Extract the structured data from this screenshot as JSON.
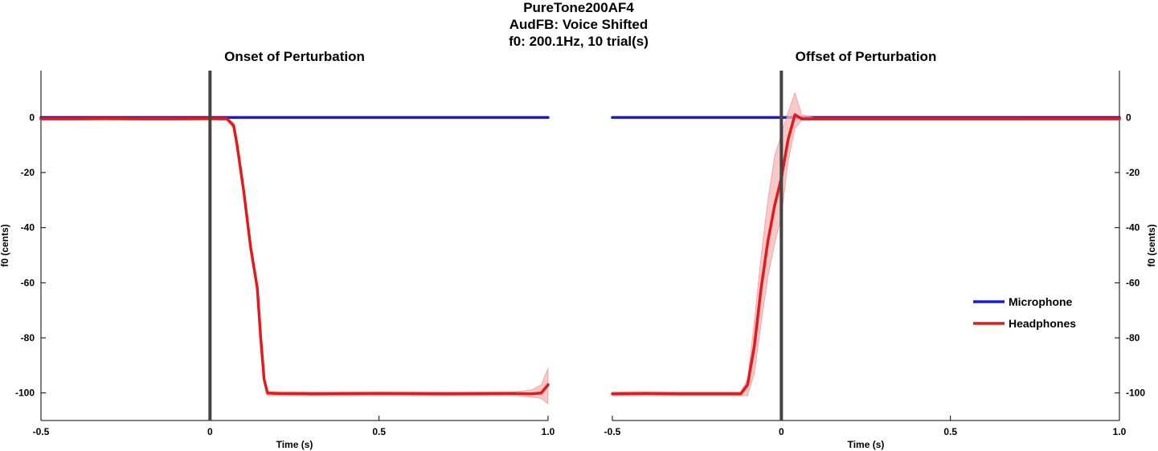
{
  "figure": {
    "title_lines": [
      "PureTone200AF4",
      "AudFB: Voice Shifted",
      "f0: 200.1Hz, 10 trial(s)"
    ]
  },
  "colors": {
    "microphone": "#1a1ad6",
    "headphones": "#e31a1c",
    "band": "#f4b6b6",
    "marker": "#444444"
  },
  "chart_data": [
    {
      "type": "line",
      "title": "Onset of Perturbation",
      "xlabel": "Time (s)",
      "ylabel": "f0 (cents)",
      "xlim": [
        -0.5,
        1.0
      ],
      "ylim": [
        -110,
        17
      ],
      "xticks": [
        -0.5,
        0,
        0.5,
        1.0
      ],
      "xtick_labels": [
        "-0.5",
        "0",
        "0.5",
        "1.0"
      ],
      "yticks": [
        0,
        -20,
        -40,
        -60,
        -80,
        -100
      ],
      "ytick_labels": [
        "0",
        "-20",
        "-40",
        "-60",
        "-80",
        "-100"
      ],
      "y_axis_side": "left",
      "grid": false,
      "event_line_x": 0,
      "series": [
        {
          "name": "Microphone",
          "x": [
            -0.5,
            1.0
          ],
          "y": [
            0,
            0
          ]
        },
        {
          "name": "Headphones",
          "x": [
            -0.5,
            -0.4,
            -0.3,
            -0.2,
            -0.1,
            0.0,
            0.05,
            0.07,
            0.08,
            0.1,
            0.12,
            0.14,
            0.15,
            0.16,
            0.17,
            0.2,
            0.3,
            0.5,
            0.7,
            0.9,
            0.95,
            0.98,
            1.0
          ],
          "y": [
            -0.5,
            -0.5,
            -0.4,
            -0.5,
            -0.5,
            -0.4,
            -0.5,
            -3,
            -10,
            -27,
            -47,
            -62,
            -80,
            -95,
            -100,
            -100.2,
            -100.3,
            -100.2,
            -100.3,
            -100.2,
            -100.3,
            -100,
            -97
          ],
          "band_low": [
            -1,
            -1,
            -1,
            -1,
            -1,
            -1,
            -1,
            -4,
            -11,
            -28,
            -48,
            -63,
            -81,
            -96,
            -101,
            -101,
            -101,
            -101,
            -101,
            -101,
            -101.5,
            -102,
            -104
          ],
          "band_high": [
            0,
            0,
            0,
            0,
            0,
            0,
            0,
            -2,
            -9,
            -26,
            -46,
            -61,
            -79,
            -94,
            -99.5,
            -99.5,
            -99.5,
            -99.5,
            -99.5,
            -99.5,
            -99,
            -97,
            -91
          ]
        }
      ]
    },
    {
      "type": "line",
      "title": "Offset of Perturbation",
      "xlabel": "Time (s)",
      "ylabel": "f0 (cents)",
      "xlim": [
        -0.5,
        1.0
      ],
      "ylim": [
        -110,
        17
      ],
      "xticks": [
        -0.5,
        0,
        0.5,
        1.0
      ],
      "xtick_labels": [
        "-0.5",
        "0",
        "0.5",
        "1.0"
      ],
      "yticks": [
        0,
        -20,
        -40,
        -60,
        -80,
        -100
      ],
      "ytick_labels": [
        "0",
        "-20",
        "-40",
        "-60",
        "-80",
        "-100"
      ],
      "y_axis_side": "right",
      "grid": false,
      "event_line_x": 0,
      "legend": {
        "placement": "lower-right",
        "entries": [
          "Microphone",
          "Headphones"
        ]
      },
      "series": [
        {
          "name": "Microphone",
          "x": [
            -0.5,
            1.0
          ],
          "y": [
            0,
            0
          ]
        },
        {
          "name": "Headphones",
          "x": [
            -0.5,
            -0.4,
            -0.3,
            -0.2,
            -0.12,
            -0.1,
            -0.08,
            -0.06,
            -0.04,
            -0.02,
            0.0,
            0.02,
            0.04,
            0.06,
            0.1,
            0.3,
            0.5,
            0.7,
            0.9,
            1.0
          ],
          "y": [
            -100.3,
            -100.2,
            -100.3,
            -100.3,
            -100.3,
            -97,
            -83,
            -62,
            -45,
            -32,
            -22,
            -8,
            1,
            -0.5,
            -0.5,
            -0.5,
            -0.5,
            -0.5,
            -0.5,
            -0.5
          ],
          "band_low": [
            -101,
            -101,
            -101,
            -101,
            -101,
            -101,
            -93,
            -75,
            -58,
            -46,
            -36,
            -16,
            -4,
            -1,
            -1,
            -1,
            -1,
            -1,
            -1,
            -1
          ],
          "band_high": [
            -99.5,
            -99.5,
            -99.5,
            -99.5,
            -99.5,
            -95,
            -74,
            -50,
            -30,
            -14,
            -6,
            2,
            9,
            1,
            0,
            0,
            0,
            0,
            0,
            0
          ]
        }
      ]
    }
  ]
}
